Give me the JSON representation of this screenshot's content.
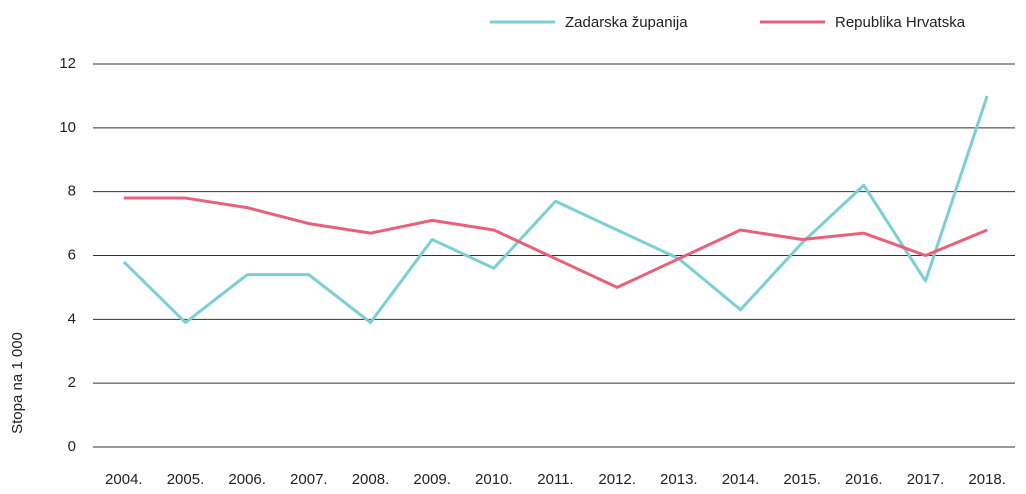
{
  "chart_data": {
    "type": "line",
    "y_label": "Stopa na 1 000",
    "categories": [
      "2004.",
      "2005.",
      "2006.",
      "2007.",
      "2008.",
      "2009.",
      "2010.",
      "2011.",
      "2012.",
      "2013.",
      "2014.",
      "2015.",
      "2016.",
      "2017.",
      "2018."
    ],
    "series": [
      {
        "name": "Zadarska županija",
        "color": "#7ccfd3",
        "values": [
          5.8,
          3.9,
          5.4,
          5.4,
          3.9,
          6.5,
          5.6,
          7.7,
          6.8,
          5.9,
          4.3,
          6.4,
          8.2,
          5.2,
          11.0
        ]
      },
      {
        "name": "Republika Hrvatska",
        "color": "#e8607a",
        "values": [
          7.8,
          7.8,
          7.5,
          7.0,
          6.7,
          7.1,
          6.8,
          5.9,
          5.0,
          5.9,
          6.8,
          6.5,
          6.7,
          6.0,
          6.8
        ]
      }
    ],
    "ylim": [
      0,
      12
    ],
    "yticks": [
      0,
      2,
      4,
      6,
      8,
      10,
      12
    ],
    "grid": true,
    "legend": "top-right"
  }
}
